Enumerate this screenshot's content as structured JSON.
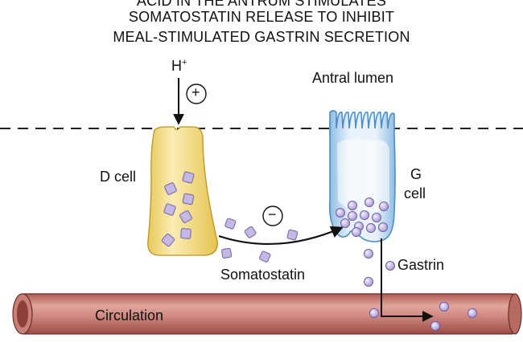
{
  "title": {
    "line1": "ACID IN THE ANTRUM STIMULATES",
    "line2": "SOMATOSTATIN RELEASE TO INHIBIT",
    "line3": "MEAL-STIMULATED GASTRIN SECRETION"
  },
  "labels": {
    "h_plus": "H",
    "h_plus_sup": "+",
    "plus_sign": "+",
    "minus_sign": "−",
    "antral_lumen": "Antral lumen",
    "d_cell": "D cell",
    "g_cell_line1": "G",
    "g_cell_line2": "cell",
    "somatostatin": "Somatostatin",
    "gastrin": "Gastrin",
    "circulation": "Circulation"
  },
  "colors": {
    "d_cell_fill": "#f3dc8a",
    "g_cell_fill": "#cfe3f3",
    "vessel_fill": "#c97a72",
    "somatostatin_granule": "#c9bde6",
    "gastrin_granule": "#c9bde6"
  }
}
